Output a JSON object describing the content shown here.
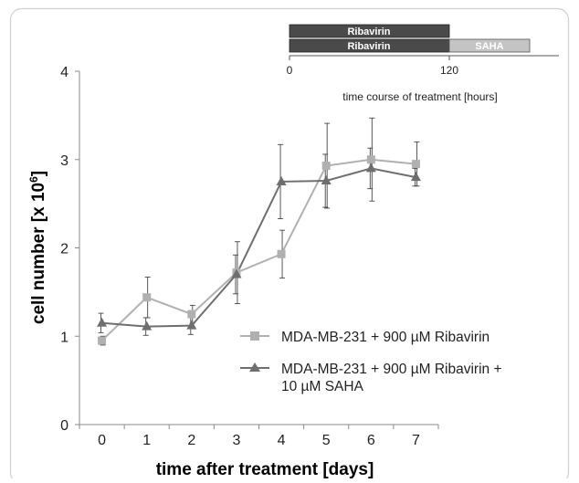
{
  "chart_data": {
    "type": "line",
    "xlabel": "time after treatment [days]",
    "ylabel_main": "cell number [x 10",
    "ylabel_exp": "6",
    "ylabel_close": "]",
    "x": [
      0,
      1,
      2,
      3,
      4,
      5,
      6,
      7
    ],
    "x_ticks": [
      "0",
      "1",
      "2",
      "3",
      "4",
      "5",
      "6",
      "7"
    ],
    "y_ticks": [
      "0",
      "1",
      "2",
      "3",
      "4"
    ],
    "xlim": [
      -0.5,
      7.5
    ],
    "ylim": [
      0,
      4
    ],
    "grid": false,
    "legend_position": "center-right",
    "series": [
      {
        "name": "MDA-MB-231 + 900 µM Ribavirin",
        "marker": "square",
        "color": "#b0b0b0",
        "values": [
          0.95,
          1.44,
          1.25,
          1.72,
          1.93,
          2.93,
          3.0,
          2.95
        ],
        "err": [
          0.05,
          0.23,
          0.1,
          0.35,
          0.27,
          0.48,
          0.47,
          0.25
        ]
      },
      {
        "name": "MDA-MB-231 + 900 µM Ribavirin +",
        "name_line2": "10 µM SAHA",
        "marker": "triangle",
        "color": "#6e6e6e",
        "values": [
          1.15,
          1.11,
          1.12,
          1.7,
          2.75,
          2.76,
          2.9,
          2.8
        ],
        "err": [
          0.11,
          0.1,
          0.1,
          0.22,
          0.42,
          0.3,
          0.23,
          0.1
        ]
      }
    ]
  },
  "inset": {
    "bar1_label": "Ribavirin",
    "bar2_label_a": "Ribavirin",
    "bar2_label_b": "SAHA",
    "tick_0": "0",
    "tick_120": "120",
    "caption": "time course of treatment [hours]",
    "bar1_end": 120,
    "bar2_split": 120,
    "bar2_end": 180,
    "axis_end": 204,
    "colors": {
      "dark": "#4a4a4a",
      "light": "#c4c4c4"
    }
  }
}
